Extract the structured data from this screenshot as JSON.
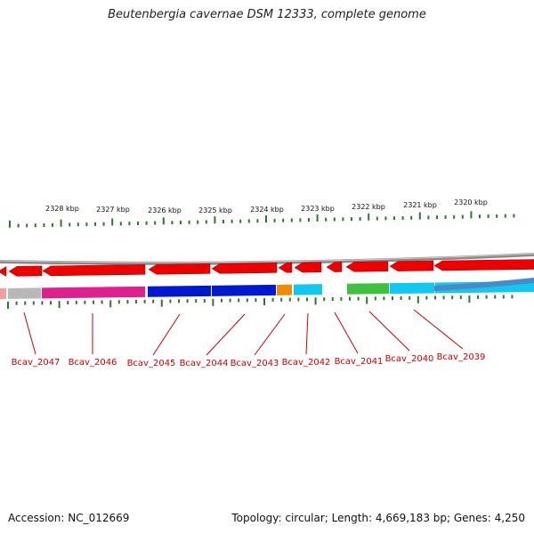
{
  "title": "Beutenbergia cavernae DSM 12333, complete genome",
  "footer": {
    "accession": "Accession: NC_012669",
    "summary": "Topology: circular; Length: 4,669,183 bp; Genes: 4,250"
  },
  "colors": {
    "forward_cds": "#ee0000",
    "ring": "#777777",
    "tick": "#2a7a2a",
    "label": "#cc0000",
    "pseudo": "#b8b8b8",
    "magenta": "#e0208f",
    "blue": "#0018d0",
    "orange": "#f08c00",
    "cyan": "#10c8f0",
    "green": "#40c040",
    "steel": "#4a8ac8"
  },
  "scale_labels": [
    "2328 kbp",
    "2327 kbp",
    "2326 kbp",
    "2325 kbp",
    "2324 kbp",
    "2323 kbp",
    "2322 kbp",
    "2321 kbp",
    "2320 kbp"
  ],
  "gene_labels": [
    "Bcav_2047",
    "Bcav_2046",
    "Bcav_2045",
    "Bcav_2044",
    "Bcav_2043",
    "Bcav_2042",
    "Bcav_2041",
    "Bcav_2040",
    "Bcav_2039"
  ]
}
